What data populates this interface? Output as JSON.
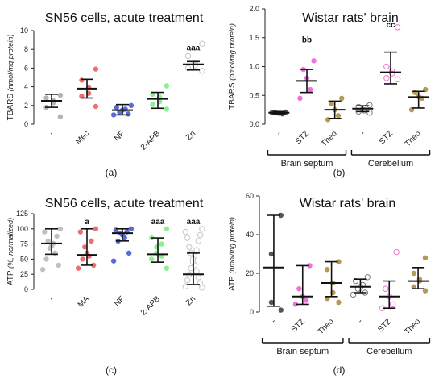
{
  "chart_data": [
    {
      "panel_label": "(a)",
      "type": "scatter",
      "title": "SN56 cells, acute treatment",
      "ylabel_main": "TBARS",
      "ylabel_unit": "(nmol/mg protein)",
      "ylim": [
        0,
        10
      ],
      "yticks": [
        "0",
        "2",
        "4",
        "6",
        "8",
        "10"
      ],
      "categories": [
        "-",
        "Mec",
        "NF",
        "2-APB",
        "Zn"
      ],
      "colors": [
        "#b3b3b3",
        "#ee6f6f",
        "#5b6bd6",
        "#8eef8e",
        "#c6c6c6"
      ],
      "hollow": [
        false,
        false,
        false,
        false,
        true
      ],
      "summary": [
        {
          "mean": 2.5,
          "lo": 1.8,
          "hi": 3.2
        },
        {
          "mean": 3.8,
          "lo": 2.8,
          "hi": 4.8
        },
        {
          "mean": 1.5,
          "lo": 1.0,
          "hi": 2.1
        },
        {
          "mean": 2.7,
          "lo": 1.7,
          "hi": 3.4
        },
        {
          "mean": 6.4,
          "lo": 5.8,
          "hi": 6.7
        }
      ],
      "points": [
        [
          3.1,
          2.8,
          2.5,
          2.3,
          1.8,
          0.8
        ],
        [
          5.9,
          4.7,
          3.9,
          3.3,
          3.0,
          1.9
        ],
        [
          2.0,
          1.8,
          1.6,
          1.5,
          1.3,
          1.1,
          1.0
        ],
        [
          4.1,
          3.2,
          2.9,
          2.4,
          2.1,
          1.6
        ],
        [
          8.6,
          7.3,
          6.5,
          6.3,
          6.0,
          5.7
        ]
      ],
      "annotations": [
        {
          "index": 4,
          "text": "aaa",
          "y": 7.9
        }
      ],
      "groups": []
    },
    {
      "panel_label": "(b)",
      "type": "scatter",
      "title": "Wistar rats' brain",
      "ylabel_main": "TBARS",
      "ylabel_unit": "(nmol/mg protein)",
      "ylim": [
        0,
        2.0
      ],
      "yticks": [
        "0.0",
        "0.5",
        "1.0",
        "1.5",
        "2.0"
      ],
      "categories": [
        "-",
        "STZ",
        "Theo",
        "-",
        "STZ",
        "Theo"
      ],
      "colors": [
        "#555555",
        "#ee73d8",
        "#b59a55",
        "#7a7a7a",
        "#ee73d8",
        "#b59a55"
      ],
      "hollow": [
        false,
        false,
        false,
        true,
        true,
        false
      ],
      "summary": [
        {
          "mean": 0.2,
          "lo": 0.18,
          "hi": 0.22
        },
        {
          "mean": 0.75,
          "lo": 0.55,
          "hi": 0.95
        },
        {
          "mean": 0.25,
          "lo": 0.1,
          "hi": 0.4
        },
        {
          "mean": 0.27,
          "lo": 0.22,
          "hi": 0.32
        },
        {
          "mean": 0.9,
          "lo": 0.7,
          "hi": 1.25
        },
        {
          "mean": 0.47,
          "lo": 0.28,
          "hi": 0.57
        }
      ],
      "points": [
        [
          0.21,
          0.2,
          0.19,
          0.18,
          0.2
        ],
        [
          1.1,
          0.95,
          0.8,
          0.6,
          0.45
        ],
        [
          0.45,
          0.35,
          0.25,
          0.15,
          0.08
        ],
        [
          0.33,
          0.3,
          0.27,
          0.24,
          0.22,
          0.2
        ],
        [
          1.68,
          1.0,
          0.92,
          0.88,
          0.8,
          0.78
        ],
        [
          0.6,
          0.55,
          0.48,
          0.45,
          0.25
        ]
      ],
      "annotations": [
        {
          "index": 1,
          "text": "bb",
          "y": 1.42
        },
        {
          "index": 4,
          "text": "cc",
          "y": 1.68
        }
      ],
      "groups": [
        {
          "label": "Brain septum",
          "from": 0,
          "to": 2
        },
        {
          "label": "Cerebellum",
          "from": 3,
          "to": 5
        }
      ]
    },
    {
      "panel_label": "(c)",
      "type": "scatter",
      "title": "SN56 cells, acute treatment",
      "ylabel_main": "ATP",
      "ylabel_unit": "(%, normalized)",
      "ylim": [
        0,
        125
      ],
      "yticks": [
        "0",
        "25",
        "50",
        "75",
        "100",
        "125"
      ],
      "categories": [
        "-",
        "MA",
        "NF",
        "2-APB",
        "Zn"
      ],
      "colors": [
        "#c0c0c0",
        "#ee6f6f",
        "#5b6bd6",
        "#8eef8e",
        "#c6c6c6"
      ],
      "hollow": [
        false,
        false,
        false,
        false,
        true
      ],
      "summary": [
        {
          "mean": 76,
          "lo": 58,
          "hi": 100
        },
        {
          "mean": 57,
          "lo": 40,
          "hi": 100
        },
        {
          "mean": 93,
          "lo": 80,
          "hi": 100
        },
        {
          "mean": 58,
          "lo": 45,
          "hi": 85
        },
        {
          "mean": 25,
          "lo": 8,
          "hi": 60
        }
      ],
      "points": [
        [
          100,
          95,
          88,
          80,
          76,
          72,
          68,
          60,
          50,
          40,
          33
        ],
        [
          100,
          95,
          80,
          70,
          60,
          55,
          50,
          40,
          35
        ],
        [
          100,
          98,
          95,
          93,
          90,
          85,
          80,
          60,
          47
        ],
        [
          100,
          85,
          75,
          70,
          60,
          55,
          50,
          35
        ],
        [
          100,
          95,
          90,
          85,
          80,
          70,
          65,
          60,
          55,
          50,
          45,
          40,
          35,
          30,
          25,
          20,
          15,
          10,
          5,
          3
        ]
      ],
      "annotations": [
        {
          "index": 1,
          "text": "a",
          "y": 108
        },
        {
          "index": 3,
          "text": "aaa",
          "y": 108
        },
        {
          "index": 4,
          "text": "aaa",
          "y": 108
        }
      ],
      "groups": []
    },
    {
      "panel_label": "(d)",
      "type": "scatter",
      "title": "Wistar rats' brain",
      "ylabel_main": "ATP",
      "ylabel_unit": "(nmol/mg protein)",
      "ylim": [
        0,
        60
      ],
      "yticks": [
        "0",
        "20",
        "40",
        "60"
      ],
      "categories": [
        "-",
        "STZ",
        "Theo",
        "-",
        "STZ",
        "Theo"
      ],
      "colors": [
        "#555555",
        "#ee73d8",
        "#b59a55",
        "#7a7a7a",
        "#ee73d8",
        "#b59a55"
      ],
      "hollow": [
        false,
        false,
        false,
        true,
        true,
        false
      ],
      "summary": [
        {
          "mean": 23,
          "lo": 3,
          "hi": 50
        },
        {
          "mean": 8,
          "lo": 4,
          "hi": 24
        },
        {
          "mean": 15,
          "lo": 8,
          "hi": 26
        },
        {
          "mean": 13,
          "lo": 10,
          "hi": 17
        },
        {
          "mean": 8,
          "lo": 2,
          "hi": 16
        },
        {
          "mean": 16,
          "lo": 12,
          "hi": 23
        }
      ],
      "points": [
        [
          50,
          30,
          5,
          1
        ],
        [
          24,
          12,
          8,
          6,
          4
        ],
        [
          26,
          22,
          15,
          10,
          7,
          5
        ],
        [
          18,
          16,
          14,
          13,
          12,
          10,
          9
        ],
        [
          31,
          12,
          8,
          4,
          2
        ],
        [
          28,
          20,
          17,
          16,
          13,
          11
        ]
      ],
      "annotations": [],
      "groups": [
        {
          "label": "Brain septum",
          "from": 0,
          "to": 2
        },
        {
          "label": "Cerebellum",
          "from": 3,
          "to": 5
        }
      ]
    }
  ]
}
